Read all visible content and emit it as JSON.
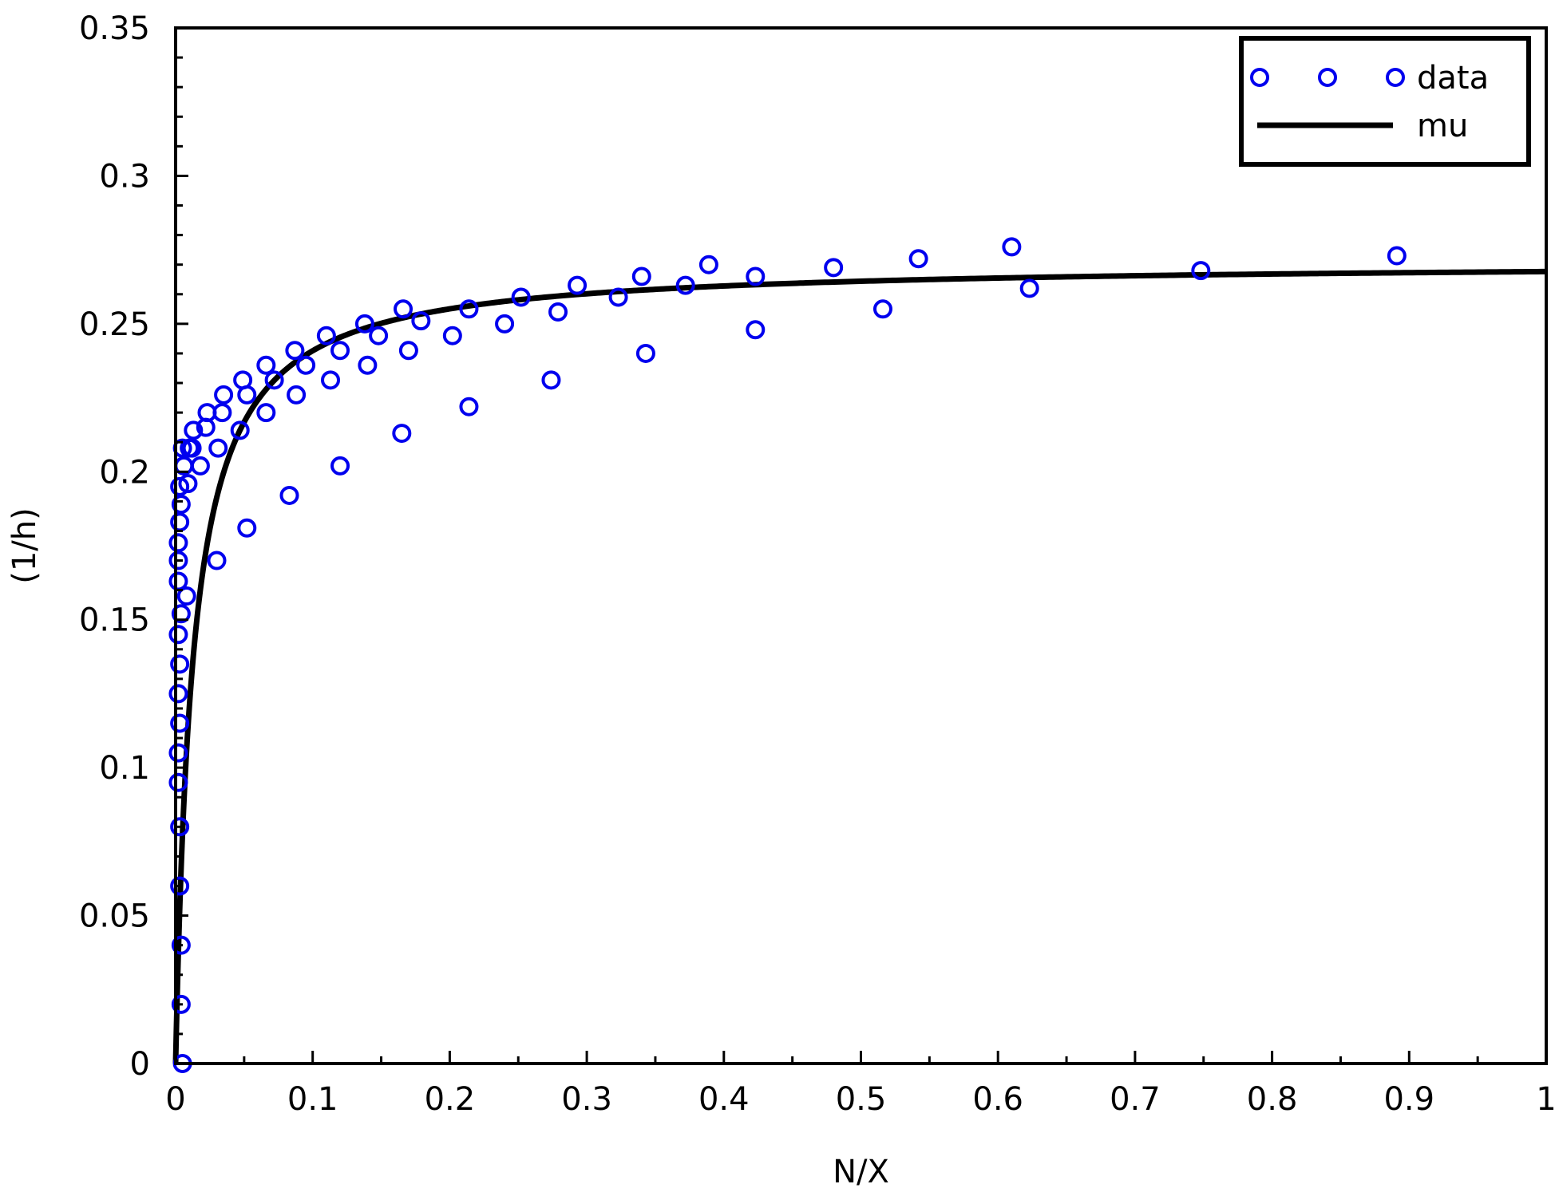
{
  "colors": {
    "data": "#0000ee",
    "mu": "#000000",
    "axis": "#000000",
    "background": "#ffffff"
  },
  "chart_data": {
    "type": "scatter",
    "xlabel": "N/X",
    "ylabel": "(1/h)",
    "xlim": [
      0,
      1
    ],
    "ylim": [
      0,
      0.35
    ],
    "x_ticks": [
      0,
      0.1,
      0.2,
      0.3,
      0.4,
      0.5,
      0.6,
      0.7,
      0.8,
      0.9,
      1
    ],
    "x_tick_labels": [
      "0",
      "0.1",
      "0.2",
      "0.3",
      "0.4",
      "0.5",
      "0.6",
      "0.7",
      "0.8",
      "0.9",
      "1"
    ],
    "y_ticks": [
      0,
      0.05,
      0.1,
      0.15,
      0.2,
      0.25,
      0.3,
      0.35
    ],
    "y_tick_labels": [
      "0",
      "0.05",
      "0.1",
      "0.15",
      "0.2",
      "0.25",
      "0.3",
      "0.35"
    ],
    "grid": false,
    "legend_position": "top-right",
    "series": [
      {
        "name": "data",
        "kind": "scatter",
        "marker": "open-circle",
        "points": [
          [
            0.005,
            0.0
          ],
          [
            0.004,
            0.02
          ],
          [
            0.004,
            0.04
          ],
          [
            0.003,
            0.06
          ],
          [
            0.003,
            0.08
          ],
          [
            0.002,
            0.095
          ],
          [
            0.002,
            0.105
          ],
          [
            0.003,
            0.115
          ],
          [
            0.002,
            0.125
          ],
          [
            0.003,
            0.135
          ],
          [
            0.002,
            0.145
          ],
          [
            0.004,
            0.152
          ],
          [
            0.008,
            0.158
          ],
          [
            0.002,
            0.163
          ],
          [
            0.002,
            0.17
          ],
          [
            0.002,
            0.176
          ],
          [
            0.003,
            0.183
          ],
          [
            0.004,
            0.189
          ],
          [
            0.003,
            0.195
          ],
          [
            0.009,
            0.196
          ],
          [
            0.006,
            0.202
          ],
          [
            0.005,
            0.208
          ],
          [
            0.01,
            0.208
          ],
          [
            0.013,
            0.214
          ],
          [
            0.012,
            0.208
          ],
          [
            0.018,
            0.202
          ],
          [
            0.022,
            0.215
          ],
          [
            0.023,
            0.22
          ],
          [
            0.03,
            0.17
          ],
          [
            0.031,
            0.208
          ],
          [
            0.034,
            0.22
          ],
          [
            0.035,
            0.226
          ],
          [
            0.047,
            0.214
          ],
          [
            0.049,
            0.231
          ],
          [
            0.052,
            0.226
          ],
          [
            0.052,
            0.181
          ],
          [
            0.066,
            0.236
          ],
          [
            0.066,
            0.22
          ],
          [
            0.072,
            0.231
          ],
          [
            0.083,
            0.192
          ],
          [
            0.087,
            0.241
          ],
          [
            0.088,
            0.226
          ],
          [
            0.095,
            0.236
          ],
          [
            0.11,
            0.246
          ],
          [
            0.113,
            0.231
          ],
          [
            0.12,
            0.241
          ],
          [
            0.12,
            0.202
          ],
          [
            0.138,
            0.25
          ],
          [
            0.14,
            0.236
          ],
          [
            0.148,
            0.246
          ],
          [
            0.165,
            0.213
          ],
          [
            0.166,
            0.255
          ],
          [
            0.17,
            0.241
          ],
          [
            0.179,
            0.251
          ],
          [
            0.202,
            0.246
          ],
          [
            0.214,
            0.222
          ],
          [
            0.214,
            0.255
          ],
          [
            0.24,
            0.25
          ],
          [
            0.252,
            0.259
          ],
          [
            0.274,
            0.231
          ],
          [
            0.279,
            0.254
          ],
          [
            0.293,
            0.263
          ],
          [
            0.323,
            0.259
          ],
          [
            0.34,
            0.266
          ],
          [
            0.343,
            0.24
          ],
          [
            0.372,
            0.263
          ],
          [
            0.389,
            0.27
          ],
          [
            0.423,
            0.248
          ],
          [
            0.423,
            0.266
          ],
          [
            0.48,
            0.269
          ],
          [
            0.516,
            0.255
          ],
          [
            0.542,
            0.272
          ],
          [
            0.61,
            0.276
          ],
          [
            0.623,
            0.262
          ],
          [
            0.748,
            0.268
          ],
          [
            0.891,
            0.273
          ]
        ]
      },
      {
        "name": "mu",
        "kind": "line",
        "model": "monod",
        "mu_max": 0.271,
        "k": 0.0125
      }
    ]
  }
}
